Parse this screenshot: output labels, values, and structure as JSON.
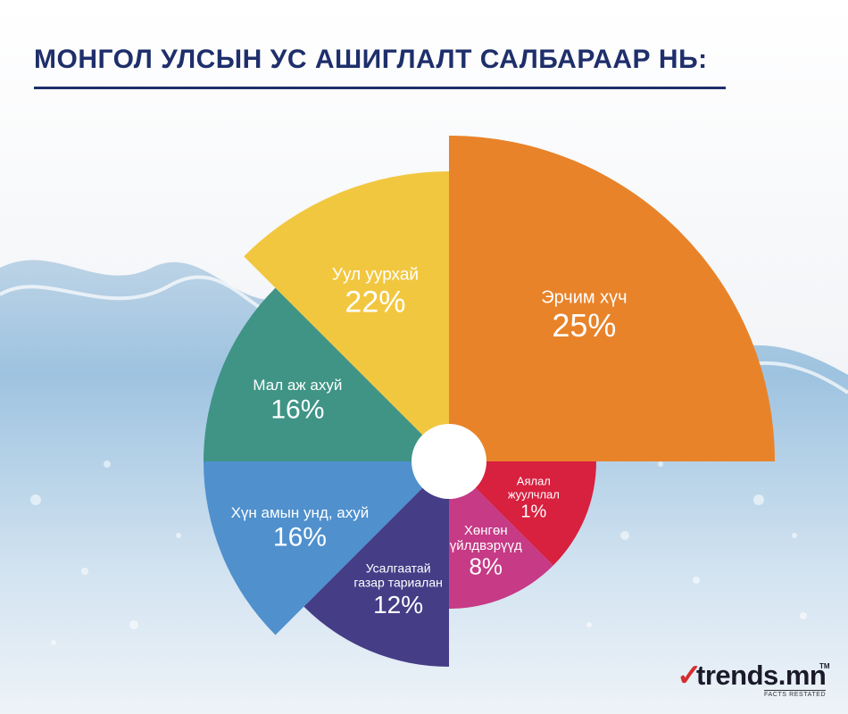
{
  "title": "МОНГОЛ УЛСЫН УС АШИГЛАЛТ САЛБАРААР НЬ:",
  "logo": {
    "name": "trends.mn",
    "tm": "TM",
    "tagline": "FACTS RESTATED"
  },
  "chart_data": {
    "type": "pie",
    "title": "МОНГОЛ УЛСЫН УС АШИГЛАЛТ САЛБАРААР НЬ:",
    "unit": "%",
    "slices": [
      {
        "label": "Эрчим хүч",
        "value": 25,
        "value_label": "25%",
        "color": "#e8832a"
      },
      {
        "label": "Аялал жуулчлал",
        "value": 1,
        "value_label": "1%",
        "color": "#d8203f"
      },
      {
        "label": "Хөнгөн үйлдвэрүүд",
        "value": 8,
        "value_label": "8%",
        "color": "#c63a86"
      },
      {
        "label": "Усалгаатай газар тариалан",
        "value": 12,
        "value_label": "12%",
        "color": "#463d87"
      },
      {
        "label": "Хүн амын унд, ахуй",
        "value": 16,
        "value_label": "16%",
        "color": "#4f90cd"
      },
      {
        "label": "Мал аж ахуй",
        "value": 16,
        "value_label": "16%",
        "color": "#3f9486"
      },
      {
        "label": "Уул уурхай",
        "value": 22,
        "value_label": "22%",
        "color": "#f2c740"
      }
    ]
  }
}
